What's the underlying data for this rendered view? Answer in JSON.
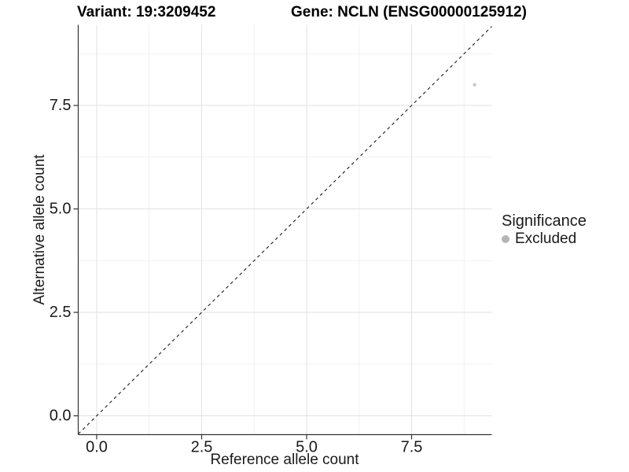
{
  "chart_data": {
    "type": "scatter",
    "title_left": "Variant: 19:3209452",
    "title_right": "Gene: NCLN (ENSG00000125912)",
    "xlabel": "Reference allele count",
    "ylabel": "Alternative allele count",
    "xlim": [
      -0.44,
      9.41
    ],
    "ylim": [
      -0.455,
      9.45
    ],
    "x_ticks": {
      "values": [
        0,
        2.5,
        5,
        7.5
      ],
      "labels": [
        "0.0",
        "2.5",
        "5.0",
        "7.5"
      ]
    },
    "y_ticks": {
      "values": [
        0,
        2.5,
        5,
        7.5
      ],
      "labels": [
        "0.0",
        "2.5",
        "5.0",
        "7.5"
      ]
    },
    "x_minor": [
      1.25,
      3.75,
      6.25,
      8.75
    ],
    "y_minor": [
      1.25,
      3.75,
      6.25,
      8.75
    ],
    "grid": "major and minor gridlines on white background",
    "reference_line": {
      "kind": "identity y=x",
      "style": "dashed",
      "color": "#1a1a1a"
    },
    "series": [
      {
        "name": "Excluded",
        "color": "#c9c9c9",
        "points": [
          [
            9,
            8
          ]
        ]
      }
    ],
    "legend": {
      "title": "Significance",
      "position": "right",
      "items": [
        {
          "label": "Excluded",
          "color": "#b5b5b5"
        }
      ]
    },
    "colors": {
      "grid_major": "#e3e3e3",
      "grid_minor": "#efefef",
      "axis": "#333333",
      "text": "#1a1a1a"
    }
  }
}
